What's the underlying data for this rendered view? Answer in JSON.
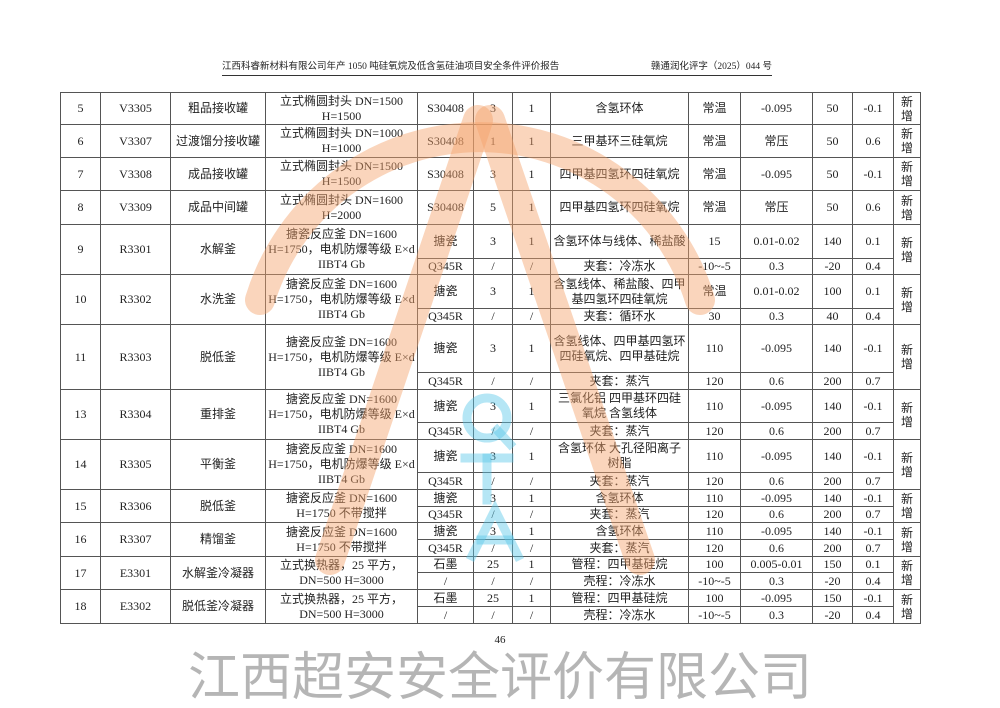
{
  "header": {
    "title": "江西科睿新材料有限公司年产 1050 吨硅氧烷及低含氢硅油项目安全条件评价报告",
    "doc_no": "赣通润化评字（2025）044 号"
  },
  "watermark": {
    "text": "江西超安安全评价有限公司",
    "letters": [
      "Q",
      "T",
      "A"
    ],
    "colors": {
      "arc": "#f5a26a",
      "letters": "#5bc8e8"
    }
  },
  "rows": [
    {
      "no": "5",
      "tag": "V3305",
      "name": "粗品接收罐",
      "spec": "立式椭圆封头 DN=1500 H=1500",
      "status": "新增",
      "parts": [
        {
          "material": "S30408",
          "volume": "3",
          "qty": "1",
          "medium": "含氢环体",
          "temp": "常温",
          "pressure": "-0.095",
          "design_temp": "50",
          "design_pressure": "-0.1"
        }
      ]
    },
    {
      "no": "6",
      "tag": "V3307",
      "name": "过渡馏分接收罐",
      "spec": "立式椭圆封头 DN=1000 H=1000",
      "status": "新增",
      "parts": [
        {
          "material": "S30408",
          "volume": "1",
          "qty": "1",
          "medium": "三甲基环三硅氧烷",
          "temp": "常温",
          "pressure": "常压",
          "design_temp": "50",
          "design_pressure": "0.6"
        }
      ]
    },
    {
      "no": "7",
      "tag": "V3308",
      "name": "成品接收罐",
      "spec": "立式椭圆封头 DN=1500 H=1500",
      "status": "新增",
      "parts": [
        {
          "material": "S30408",
          "volume": "3",
          "qty": "1",
          "medium": "四甲基四氢环四硅氧烷",
          "temp": "常温",
          "pressure": "-0.095",
          "design_temp": "50",
          "design_pressure": "-0.1"
        }
      ]
    },
    {
      "no": "8",
      "tag": "V3309",
      "name": "成品中间罐",
      "spec": "立式椭圆封头 DN=1600 H=2000",
      "status": "新增",
      "parts": [
        {
          "material": "S30408",
          "volume": "5",
          "qty": "1",
          "medium": "四甲基四氢环四硅氧烷",
          "temp": "常温",
          "pressure": "常压",
          "design_temp": "50",
          "design_pressure": "0.6"
        }
      ]
    },
    {
      "no": "9",
      "tag": "R3301",
      "name": "水解釜",
      "spec": "搪瓷反应釜 DN=1600 H=1750，电机防爆等级 E×d IIBT4 Gb",
      "status": "新增",
      "parts": [
        {
          "material": "搪瓷",
          "volume": "3",
          "qty": "1",
          "medium": "含氢环体与线体、稀盐酸",
          "temp": "15",
          "pressure": "0.01-0.02",
          "design_temp": "140",
          "design_pressure": "0.1"
        },
        {
          "material": "Q345R",
          "volume": "/",
          "qty": "/",
          "medium": "夹套：冷冻水",
          "temp": "-10~-5",
          "pressure": "0.3",
          "design_temp": "-20",
          "design_pressure": "0.4"
        }
      ]
    },
    {
      "no": "10",
      "tag": "R3302",
      "name": "水洗釜",
      "spec": "搪瓷反应釜 DN=1600 H=1750，电机防爆等级 E×d IIBT4 Gb",
      "status": "新增",
      "parts": [
        {
          "material": "搪瓷",
          "volume": "3",
          "qty": "1",
          "medium": "含氢线体、稀盐酸、四甲基四氢环四硅氧烷",
          "temp": "常温",
          "pressure": "0.01-0.02",
          "design_temp": "100",
          "design_pressure": "0.1"
        },
        {
          "material": "Q345R",
          "volume": "/",
          "qty": "/",
          "medium": "夹套：循环水",
          "temp": "30",
          "pressure": "0.3",
          "design_temp": "40",
          "design_pressure": "0.4"
        }
      ]
    },
    {
      "no": "11",
      "tag": "R3303",
      "name": "脱低釜",
      "spec": "搪瓷反应釜 DN=1600 H=1750，电机防爆等级 E×d IIBT4 Gb",
      "status": "新增",
      "parts": [
        {
          "material": "搪瓷",
          "volume": "3",
          "qty": "1",
          "medium": "含氢线体、四甲基四氢环四硅氧烷、四甲基硅烷",
          "temp": "110",
          "pressure": "-0.095",
          "design_temp": "140",
          "design_pressure": "-0.1"
        },
        {
          "material": "Q345R",
          "volume": "/",
          "qty": "/",
          "medium": "夹套：蒸汽",
          "temp": "120",
          "pressure": "0.6",
          "design_temp": "200",
          "design_pressure": "0.7"
        }
      ]
    },
    {
      "no": "13",
      "tag": "R3304",
      "name": "重排釜",
      "spec": "搪瓷反应釜 DN=1600 H=1750，电机防爆等级 E×d IIBT4 Gb",
      "status": "新增",
      "parts": [
        {
          "material": "搪瓷",
          "volume": "3",
          "qty": "1",
          "medium": "三氯化铝 四甲基环四硅氧烷 含氢线体",
          "temp": "110",
          "pressure": "-0.095",
          "design_temp": "140",
          "design_pressure": "-0.1"
        },
        {
          "material": "Q345R",
          "volume": "/",
          "qty": "/",
          "medium": "夹套：蒸汽",
          "temp": "120",
          "pressure": "0.6",
          "design_temp": "200",
          "design_pressure": "0.7"
        }
      ]
    },
    {
      "no": "14",
      "tag": "R3305",
      "name": "平衡釜",
      "spec": "搪瓷反应釜 DN=1600 H=1750，电机防爆等级 E×d IIBT4 Gb",
      "status": "新增",
      "parts": [
        {
          "material": "搪瓷",
          "volume": "3",
          "qty": "1",
          "medium": "含氢环体 大孔径阳离子树脂",
          "temp": "110",
          "pressure": "-0.095",
          "design_temp": "140",
          "design_pressure": "-0.1"
        },
        {
          "material": "Q345R",
          "volume": "/",
          "qty": "/",
          "medium": "夹套：蒸汽",
          "temp": "120",
          "pressure": "0.6",
          "design_temp": "200",
          "design_pressure": "0.7"
        }
      ]
    },
    {
      "no": "15",
      "tag": "R3306",
      "name": "脱低釜",
      "spec": "搪瓷反应釜 DN=1600 H=1750 不带搅拌",
      "status": "新增",
      "parts": [
        {
          "material": "搪瓷",
          "volume": "3",
          "qty": "1",
          "medium": "含氢环体",
          "temp": "110",
          "pressure": "-0.095",
          "design_temp": "140",
          "design_pressure": "-0.1"
        },
        {
          "material": "Q345R",
          "volume": "/",
          "qty": "/",
          "medium": "夹套：蒸汽",
          "temp": "120",
          "pressure": "0.6",
          "design_temp": "200",
          "design_pressure": "0.7"
        }
      ]
    },
    {
      "no": "16",
      "tag": "R3307",
      "name": "精馏釜",
      "spec": "搪瓷反应釜 DN=1600 H=1750 不带搅拌",
      "status": "新增",
      "parts": [
        {
          "material": "搪瓷",
          "volume": "3",
          "qty": "1",
          "medium": "含氢环体",
          "temp": "110",
          "pressure": "-0.095",
          "design_temp": "140",
          "design_pressure": "-0.1"
        },
        {
          "material": "Q345R",
          "volume": "/",
          "qty": "/",
          "medium": "夹套：蒸汽",
          "temp": "120",
          "pressure": "0.6",
          "design_temp": "200",
          "design_pressure": "0.7"
        }
      ]
    },
    {
      "no": "17",
      "tag": "E3301",
      "name": "水解釜冷凝器",
      "spec": "立式换热器，25 平方，DN=500 H=3000",
      "status": "新增",
      "parts": [
        {
          "material": "石墨",
          "volume": "25",
          "qty": "1",
          "medium": "管程：四甲基硅烷",
          "temp": "100",
          "pressure": "0.005-0.01",
          "design_temp": "150",
          "design_pressure": "0.1"
        },
        {
          "material": "/",
          "volume": "/",
          "qty": "/",
          "medium": "壳程：冷冻水",
          "temp": "-10~-5",
          "pressure": "0.3",
          "design_temp": "-20",
          "design_pressure": "0.4"
        }
      ]
    },
    {
      "no": "18",
      "tag": "E3302",
      "name": "脱低釜冷凝器",
      "spec": "立式换热器，25 平方，DN=500 H=3000",
      "status": "新增",
      "parts": [
        {
          "material": "石墨",
          "volume": "25",
          "qty": "1",
          "medium": "管程：四甲基硅烷",
          "temp": "100",
          "pressure": "-0.095",
          "design_temp": "150",
          "design_pressure": "-0.1"
        },
        {
          "material": "/",
          "volume": "/",
          "qty": "/",
          "medium": "壳程：冷冻水",
          "temp": "-10~-5",
          "pressure": "0.3",
          "design_temp": "-20",
          "design_pressure": "0.4"
        }
      ]
    }
  ],
  "page_number": "46"
}
